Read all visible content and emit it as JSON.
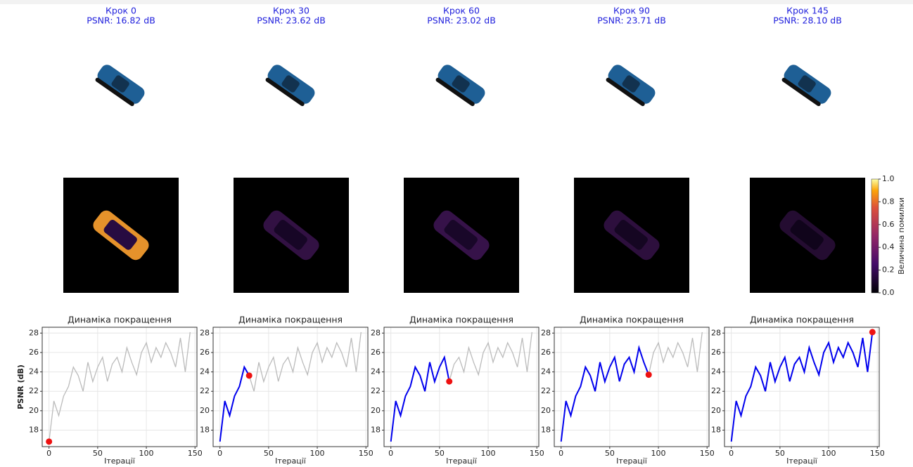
{
  "chart_data": [
    {
      "type": "line",
      "heading": "Крок 0",
      "subtitle": "PSNR: 16.82 dB",
      "title": "Динаміка покращення",
      "xlabel": "Ітерації",
      "ylabel": "PSNR (dB)",
      "x": [
        0,
        5,
        10,
        15,
        20,
        25,
        30,
        35,
        40,
        45,
        50,
        55,
        60,
        65,
        70,
        75,
        80,
        85,
        90,
        95,
        100,
        105,
        110,
        115,
        120,
        125,
        130,
        135,
        140,
        145
      ],
      "series": [
        {
          "color": "#bbbbbb",
          "values": [
            16.82,
            21.0,
            19.5,
            21.5,
            22.5,
            24.5,
            23.62,
            22.0,
            25.0,
            23.0,
            24.5,
            25.5,
            23.02,
            24.8,
            25.5,
            24.0,
            26.5,
            25.0,
            23.71,
            26.0,
            27.0,
            25.0,
            26.5,
            25.5,
            27.0,
            26.0,
            24.5,
            27.5,
            24.0,
            28.1
          ]
        },
        {
          "color": "#0000ee",
          "values": [
            16.82,
            null,
            null,
            null,
            null,
            null,
            null,
            null,
            null,
            null,
            null,
            null,
            null,
            null,
            null,
            null,
            null,
            null,
            null,
            null,
            null,
            null,
            null,
            null,
            null,
            null,
            null,
            null,
            null,
            null
          ]
        }
      ],
      "marker": {
        "x": 0,
        "y": 16.82,
        "color": "#ee1111"
      },
      "xlim": [
        -7,
        152
      ],
      "ylim": [
        16.3,
        28.6
      ],
      "xticks": [
        0,
        50,
        100,
        150
      ],
      "yticks": [
        18,
        20,
        22,
        24,
        26,
        28
      ],
      "grid": true
    },
    {
      "type": "line",
      "heading": "Крок 30",
      "subtitle": "PSNR: 23.62 dB",
      "title": "Динаміка покращення",
      "xlabel": "Ітерації",
      "x": [
        0,
        5,
        10,
        15,
        20,
        25,
        30,
        35,
        40,
        45,
        50,
        55,
        60,
        65,
        70,
        75,
        80,
        85,
        90,
        95,
        100,
        105,
        110,
        115,
        120,
        125,
        130,
        135,
        140,
        145
      ],
      "series": [
        {
          "color": "#bbbbbb",
          "values": [
            16.82,
            21.0,
            19.5,
            21.5,
            22.5,
            24.5,
            23.62,
            22.0,
            25.0,
            23.0,
            24.5,
            25.5,
            23.02,
            24.8,
            25.5,
            24.0,
            26.5,
            25.0,
            23.71,
            26.0,
            27.0,
            25.0,
            26.5,
            25.5,
            27.0,
            26.0,
            24.5,
            27.5,
            24.0,
            28.1
          ]
        },
        {
          "color": "#0000ee",
          "values": [
            16.82,
            21.0,
            19.5,
            21.5,
            22.5,
            24.5,
            23.62,
            null,
            null,
            null,
            null,
            null,
            null,
            null,
            null,
            null,
            null,
            null,
            null,
            null,
            null,
            null,
            null,
            null,
            null,
            null,
            null,
            null,
            null,
            null
          ]
        }
      ],
      "marker": {
        "x": 30,
        "y": 23.62,
        "color": "#ee1111"
      },
      "xlim": [
        -7,
        152
      ],
      "ylim": [
        16.3,
        28.6
      ],
      "xticks": [
        0,
        50,
        100,
        150
      ],
      "yticks": [
        18,
        20,
        22,
        24,
        26,
        28
      ],
      "grid": true
    },
    {
      "type": "line",
      "heading": "Крок 60",
      "subtitle": "PSNR: 23.02 dB",
      "title": "Динаміка покращення",
      "xlabel": "Ітерації",
      "x": [
        0,
        5,
        10,
        15,
        20,
        25,
        30,
        35,
        40,
        45,
        50,
        55,
        60,
        65,
        70,
        75,
        80,
        85,
        90,
        95,
        100,
        105,
        110,
        115,
        120,
        125,
        130,
        135,
        140,
        145
      ],
      "series": [
        {
          "color": "#bbbbbb",
          "values": [
            16.82,
            21.0,
            19.5,
            21.5,
            22.5,
            24.5,
            23.62,
            22.0,
            25.0,
            23.0,
            24.5,
            25.5,
            23.02,
            24.8,
            25.5,
            24.0,
            26.5,
            25.0,
            23.71,
            26.0,
            27.0,
            25.0,
            26.5,
            25.5,
            27.0,
            26.0,
            24.5,
            27.5,
            24.0,
            28.1
          ]
        },
        {
          "color": "#0000ee",
          "values": [
            16.82,
            21.0,
            19.5,
            21.5,
            22.5,
            24.5,
            23.62,
            22.0,
            25.0,
            23.0,
            24.5,
            25.5,
            23.02,
            null,
            null,
            null,
            null,
            null,
            null,
            null,
            null,
            null,
            null,
            null,
            null,
            null,
            null,
            null,
            null,
            null
          ]
        }
      ],
      "marker": {
        "x": 60,
        "y": 23.02,
        "color": "#ee1111"
      },
      "xlim": [
        -7,
        152
      ],
      "ylim": [
        16.3,
        28.6
      ],
      "xticks": [
        0,
        50,
        100,
        150
      ],
      "yticks": [
        18,
        20,
        22,
        24,
        26,
        28
      ],
      "grid": true
    },
    {
      "type": "line",
      "heading": "Крок 90",
      "subtitle": "PSNR: 23.71 dB",
      "title": "Динаміка покращення",
      "xlabel": "Ітерації",
      "x": [
        0,
        5,
        10,
        15,
        20,
        25,
        30,
        35,
        40,
        45,
        50,
        55,
        60,
        65,
        70,
        75,
        80,
        85,
        90,
        95,
        100,
        105,
        110,
        115,
        120,
        125,
        130,
        135,
        140,
        145
      ],
      "series": [
        {
          "color": "#bbbbbb",
          "values": [
            16.82,
            21.0,
            19.5,
            21.5,
            22.5,
            24.5,
            23.62,
            22.0,
            25.0,
            23.0,
            24.5,
            25.5,
            23.02,
            24.8,
            25.5,
            24.0,
            26.5,
            25.0,
            23.71,
            26.0,
            27.0,
            25.0,
            26.5,
            25.5,
            27.0,
            26.0,
            24.5,
            27.5,
            24.0,
            28.1
          ]
        },
        {
          "color": "#0000ee",
          "values": [
            16.82,
            21.0,
            19.5,
            21.5,
            22.5,
            24.5,
            23.62,
            22.0,
            25.0,
            23.0,
            24.5,
            25.5,
            23.02,
            24.8,
            25.5,
            24.0,
            26.5,
            25.0,
            23.71,
            null,
            null,
            null,
            null,
            null,
            null,
            null,
            null,
            null,
            null,
            null
          ]
        }
      ],
      "marker": {
        "x": 90,
        "y": 23.71,
        "color": "#ee1111"
      },
      "xlim": [
        -7,
        152
      ],
      "ylim": [
        16.3,
        28.6
      ],
      "xticks": [
        0,
        50,
        100,
        150
      ],
      "yticks": [
        18,
        20,
        22,
        24,
        26,
        28
      ],
      "grid": true
    },
    {
      "type": "line",
      "heading": "Крок 145",
      "subtitle": "PSNR: 28.10 dB",
      "title": "Динаміка покращення",
      "xlabel": "Ітерації",
      "x": [
        0,
        5,
        10,
        15,
        20,
        25,
        30,
        35,
        40,
        45,
        50,
        55,
        60,
        65,
        70,
        75,
        80,
        85,
        90,
        95,
        100,
        105,
        110,
        115,
        120,
        125,
        130,
        135,
        140,
        145
      ],
      "series": [
        {
          "color": "#bbbbbb",
          "values": [
            16.82,
            21.0,
            19.5,
            21.5,
            22.5,
            24.5,
            23.62,
            22.0,
            25.0,
            23.0,
            24.5,
            25.5,
            23.02,
            24.8,
            25.5,
            24.0,
            26.5,
            25.0,
            23.71,
            26.0,
            27.0,
            25.0,
            26.5,
            25.5,
            27.0,
            26.0,
            24.5,
            27.5,
            24.0,
            28.1
          ]
        },
        {
          "color": "#0000ee",
          "values": [
            16.82,
            21.0,
            19.5,
            21.5,
            22.5,
            24.5,
            23.62,
            22.0,
            25.0,
            23.0,
            24.5,
            25.5,
            23.02,
            24.8,
            25.5,
            24.0,
            26.5,
            25.0,
            23.71,
            26.0,
            27.0,
            25.0,
            26.5,
            25.5,
            27.0,
            26.0,
            24.5,
            27.5,
            24.0,
            28.1
          ]
        }
      ],
      "marker": {
        "x": 145,
        "y": 28.1,
        "color": "#ee1111"
      },
      "xlim": [
        -7,
        152
      ],
      "ylim": [
        16.3,
        28.6
      ],
      "xticks": [
        0,
        50,
        100,
        150
      ],
      "yticks": [
        18,
        20,
        22,
        24,
        26,
        28
      ],
      "grid": true
    }
  ],
  "colorbar": {
    "label": "Величина помилки",
    "lim": [
      0,
      1
    ],
    "ticks": [
      {
        "value": 0,
        "label": "0.0"
      },
      {
        "value": 0.2,
        "label": "0.2"
      },
      {
        "value": 0.4,
        "label": "0.4"
      },
      {
        "value": 0.6,
        "label": "0.6"
      },
      {
        "value": 0.8,
        "label": "0.8"
      },
      {
        "value": 1,
        "label": "1.0"
      }
    ]
  }
}
